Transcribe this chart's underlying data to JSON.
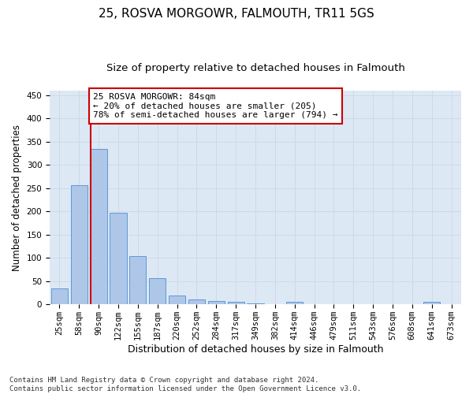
{
  "title": "25, ROSVA MORGOWR, FALMOUTH, TR11 5GS",
  "subtitle": "Size of property relative to detached houses in Falmouth",
  "xlabel": "Distribution of detached houses by size in Falmouth",
  "ylabel": "Number of detached properties",
  "bar_color": "#aec6e8",
  "bar_edge_color": "#5b9bd5",
  "background_color": "#ffffff",
  "grid_color": "#d0d8e8",
  "ax_bg_color": "#dde8f5",
  "categories": [
    "25sqm",
    "58sqm",
    "90sqm",
    "122sqm",
    "155sqm",
    "187sqm",
    "220sqm",
    "252sqm",
    "284sqm",
    "317sqm",
    "349sqm",
    "382sqm",
    "414sqm",
    "446sqm",
    "479sqm",
    "511sqm",
    "543sqm",
    "576sqm",
    "608sqm",
    "641sqm",
    "673sqm"
  ],
  "values": [
    35,
    256,
    335,
    197,
    104,
    57,
    19,
    11,
    8,
    6,
    3,
    0,
    5,
    0,
    0,
    0,
    0,
    0,
    0,
    5,
    0
  ],
  "ylim": [
    0,
    460
  ],
  "yticks": [
    0,
    50,
    100,
    150,
    200,
    250,
    300,
    350,
    400,
    450
  ],
  "property_bin_index": 2,
  "annotation_text": "25 ROSVA MORGOWR: 84sqm\n← 20% of detached houses are smaller (205)\n78% of semi-detached houses are larger (794) →",
  "vline_color": "#cc0000",
  "annotation_box_color": "#ffffff",
  "annotation_box_edge_color": "#cc0000",
  "footer_text": "Contains HM Land Registry data © Crown copyright and database right 2024.\nContains public sector information licensed under the Open Government Licence v3.0.",
  "title_fontsize": 11,
  "subtitle_fontsize": 9.5,
  "xlabel_fontsize": 9,
  "ylabel_fontsize": 8.5,
  "tick_fontsize": 7.5,
  "annotation_fontsize": 8,
  "footer_fontsize": 6.5
}
